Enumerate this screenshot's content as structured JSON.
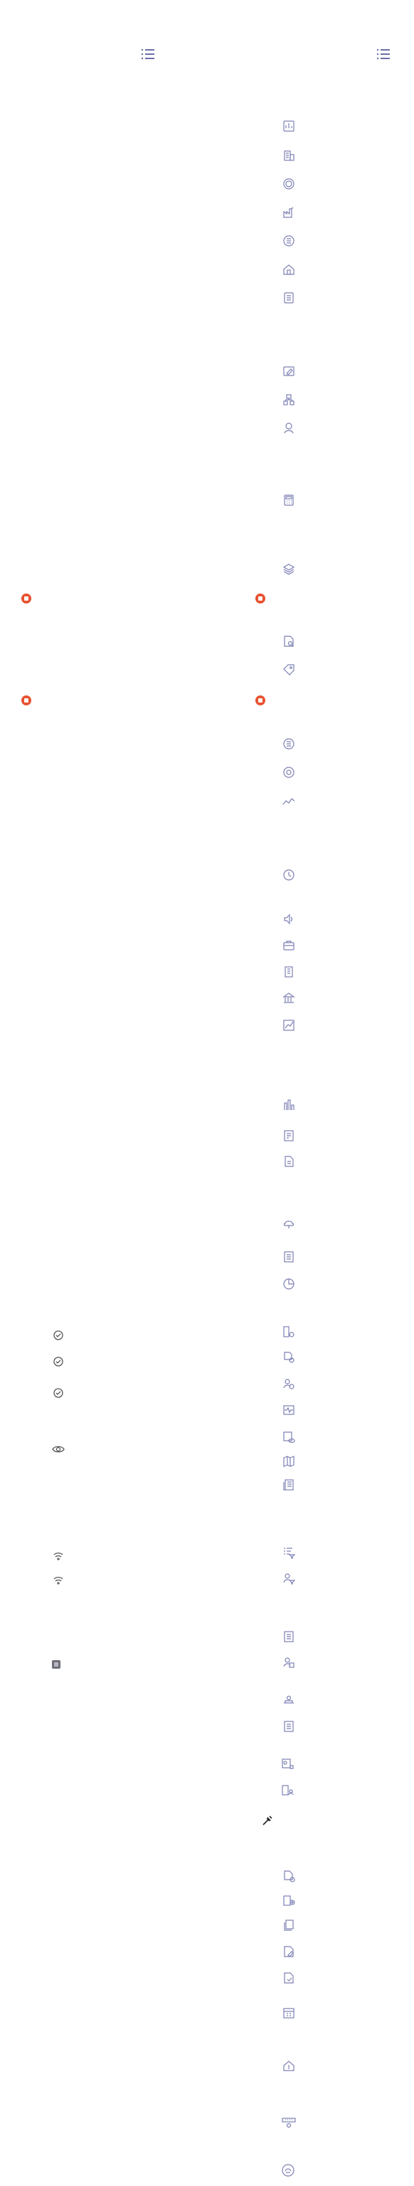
{
  "colors": {
    "icon_stroke": "#7d80b4",
    "icon_dark": "#555555",
    "badge_red": "#e8512f",
    "background": "#ffffff"
  },
  "toggles": [
    {
      "name": "list-menu-toggle-left",
      "icon": "list-icon"
    },
    {
      "name": "list-menu-toggle-right",
      "icon": "list-icon"
    }
  ],
  "sidebar_icons": [
    "dashboard-icon",
    "building-icon",
    "coin-icon",
    "factory-icon",
    "money-icon",
    "home-icon",
    "document-icon",
    "edit-icon",
    "org-chart-icon",
    "user-icon",
    "calculator-icon",
    "layers-icon",
    "file-search-icon",
    "tag-icon",
    "currency-icon",
    "settings-icon",
    "trend-line-icon",
    "clock-icon",
    "speaker-icon",
    "briefcase-icon",
    "office-building-icon",
    "bank-icon",
    "chart-growth-icon",
    "industry-icon",
    "report-icon",
    "file-icon",
    "cloud-icon",
    "list-icon",
    "pie-chart-icon",
    "building-settings-icon",
    "file-settings-icon",
    "user-settings-icon",
    "pulse-icon",
    "document-view-icon",
    "map-icon",
    "newspaper-icon",
    "filter-list-icon",
    "user-filter-icon",
    "clipboard-icon",
    "user-settings-icon",
    "hand-money-icon",
    "document-list-icon",
    "id-card-icon",
    "building-person-icon",
    "file-add-icon",
    "building-add-icon",
    "copy-icon",
    "file-edit-icon",
    "file-check-icon",
    "calendar-icon",
    "home-dollar-icon",
    "key-icon",
    "logo-icon"
  ],
  "red_badges": [
    "notification-badge",
    "notification-badge",
    "notification-badge",
    "notification-badge"
  ],
  "left_small_icons": [
    "check-circle-icon",
    "check-circle-icon",
    "check-circle-icon",
    "eye-icon",
    "wifi-icon",
    "wifi-icon",
    "square-icon",
    "pin-icon"
  ]
}
